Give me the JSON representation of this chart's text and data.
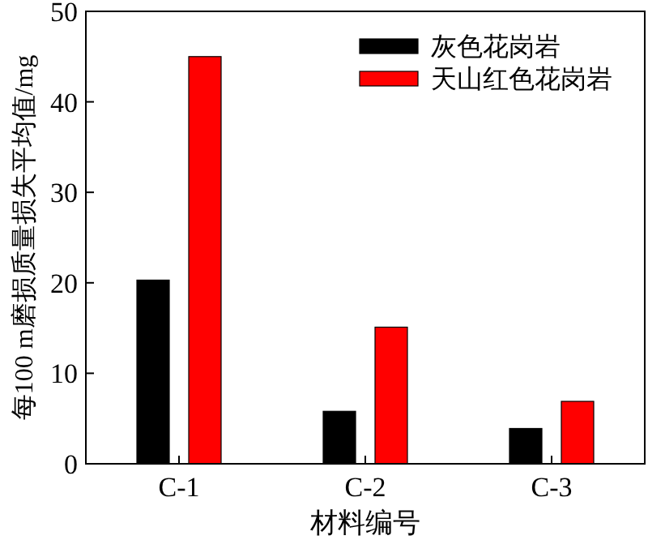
{
  "chart_data": {
    "type": "bar",
    "xlabel": "材料编号",
    "ylabel": "每100 m磨损质量损失平均值/mg",
    "categories": [
      "C-1",
      "C-2",
      "C-3"
    ],
    "series": [
      {
        "name": "灰色花岗岩",
        "color": "#000000",
        "values": [
          20.3,
          5.8,
          3.9
        ]
      },
      {
        "name": "天山红色花岗岩",
        "color": "#ff0000",
        "values": [
          45.0,
          15.1,
          6.9
        ]
      }
    ],
    "ylim": [
      0,
      50
    ],
    "yticks": [
      0,
      10,
      20,
      30,
      40,
      50
    ],
    "legend": "top right",
    "grid": false
  }
}
